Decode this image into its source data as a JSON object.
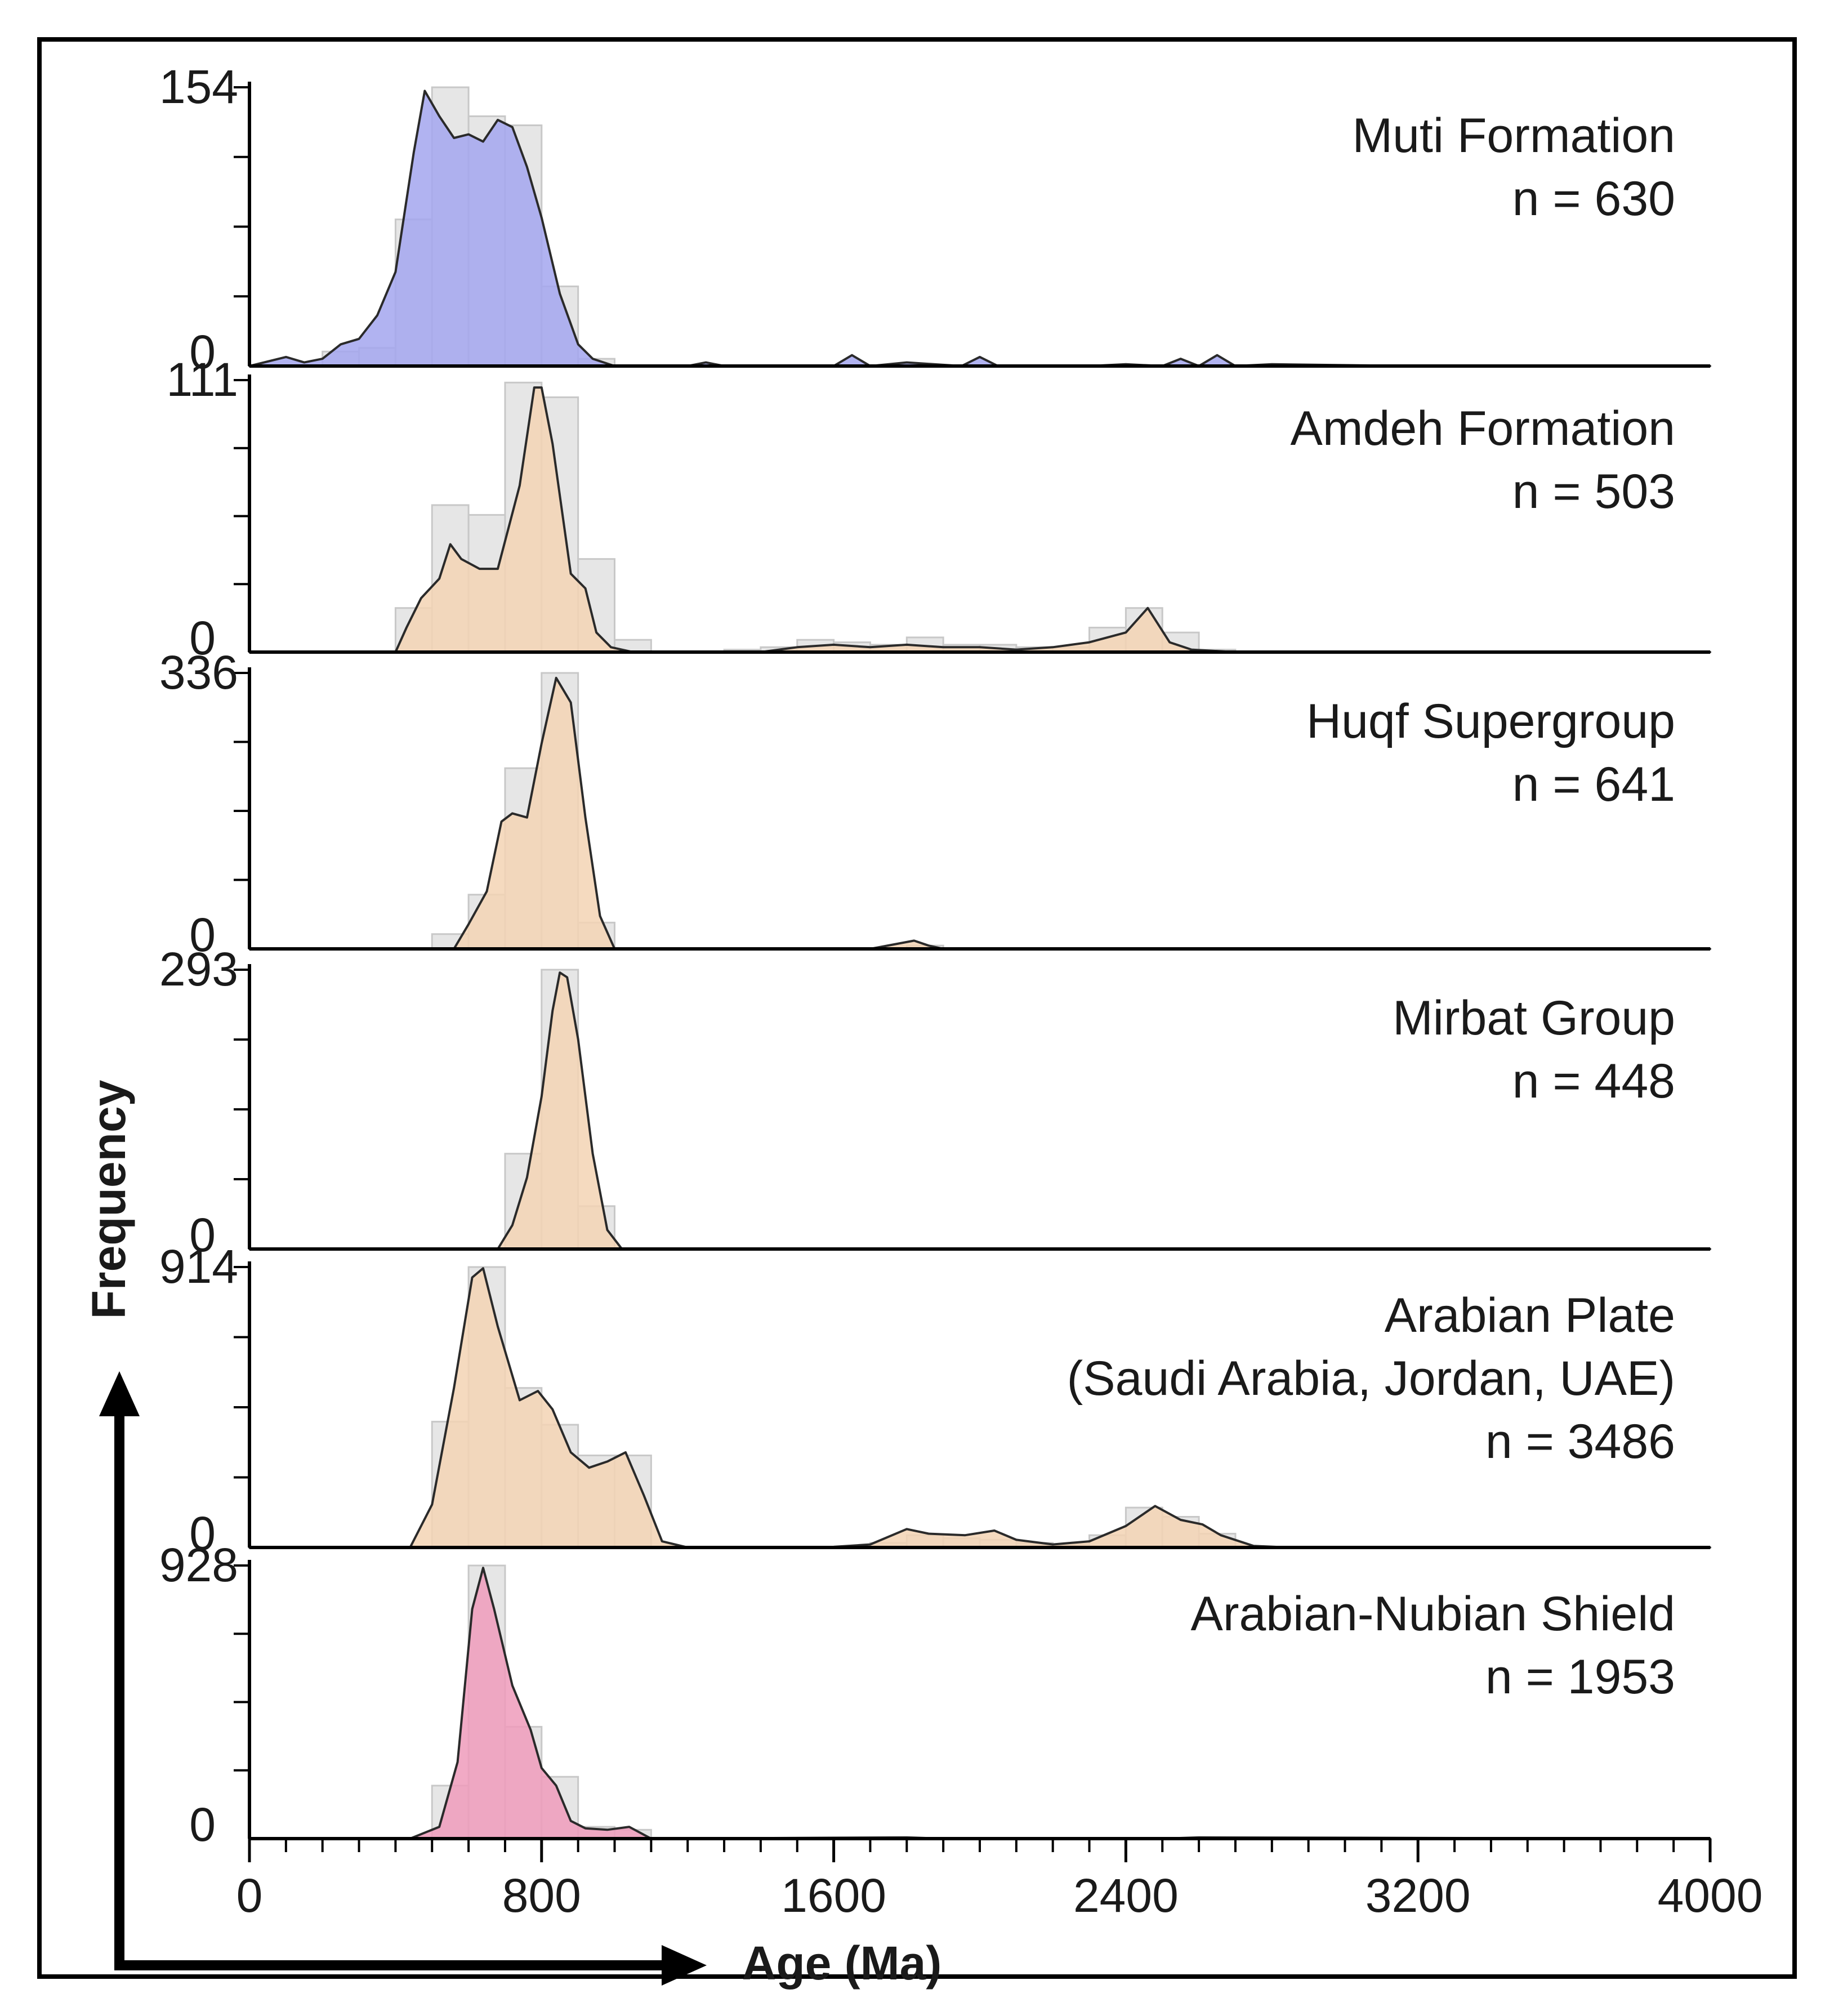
{
  "chart_data": {
    "type": "area",
    "title": "",
    "xlabel": "Age (Ma)",
    "ylabel": "Frequency",
    "xlim": [
      0,
      4000
    ],
    "xticks": [
      0,
      800,
      1600,
      2400,
      3200,
      4000
    ],
    "xtick_labels": [
      "0",
      "800",
      "1600",
      "2400",
      "3200",
      "4000"
    ],
    "x_minor_step": 100,
    "bin_width": 100,
    "panels": [
      {
        "name": "Muti Formation",
        "label_lines": [
          "Muti Formation",
          "n = 630"
        ],
        "ymax": 154,
        "ymax_label": "154",
        "ymin_label": "0",
        "fill": "#a3a6ee",
        "hist_centers": [
          250,
          350,
          450,
          550,
          650,
          750,
          850,
          950
        ],
        "hist_values": [
          8,
          10,
          81,
          154,
          138,
          133,
          44,
          4
        ],
        "kde_x": [
          0,
          100,
          150,
          200,
          250,
          300,
          350,
          400,
          450,
          480,
          520,
          560,
          600,
          640,
          680,
          720,
          760,
          800,
          850,
          900,
          940,
          1000,
          1200,
          1250,
          1300,
          1600,
          1650,
          1700,
          1800,
          1950,
          2000,
          2050,
          2300,
          2400,
          2500,
          2550,
          2600,
          2650,
          2700,
          2800,
          3200,
          4000
        ],
        "kde_y": [
          0,
          5,
          2,
          4,
          12,
          15,
          28,
          52,
          118,
          152,
          138,
          126,
          128,
          124,
          136,
          132,
          110,
          82,
          40,
          12,
          4,
          0,
          0,
          2,
          0,
          0,
          6,
          0,
          2,
          0,
          5,
          0,
          0,
          1,
          0,
          4,
          0,
          6,
          0,
          1,
          0,
          0
        ]
      },
      {
        "name": "Amdeh Formation",
        "label_lines": [
          "Amdeh Formation",
          "n = 503"
        ],
        "ymax": 111,
        "ymax_label": "111",
        "ymin_label": "0",
        "fill": "#f3d4b4",
        "hist_centers": [
          450,
          550,
          650,
          750,
          850,
          950,
          1050,
          1350,
          1450,
          1550,
          1650,
          1750,
          1850,
          1950,
          2050,
          2150,
          2250,
          2350,
          2450,
          2550,
          2650
        ],
        "hist_values": [
          18,
          60,
          56,
          110,
          104,
          38,
          5,
          1,
          2,
          5,
          4,
          3,
          6,
          3,
          3,
          2,
          2,
          10,
          18,
          8,
          1
        ],
        "kde_x": [
          0,
          400,
          430,
          470,
          520,
          550,
          580,
          630,
          680,
          740,
          780,
          800,
          830,
          880,
          920,
          950,
          990,
          1050,
          1400,
          1500,
          1600,
          1700,
          1800,
          1900,
          2000,
          2100,
          2200,
          2300,
          2400,
          2460,
          2520,
          2580,
          2700,
          4000
        ],
        "kde_y": [
          0,
          0,
          10,
          22,
          30,
          44,
          38,
          34,
          34,
          68,
          108,
          108,
          85,
          32,
          26,
          8,
          2,
          0,
          0,
          2,
          3,
          2,
          3,
          2,
          2,
          1,
          2,
          4,
          8,
          18,
          4,
          1,
          0,
          0
        ]
      },
      {
        "name": "Huqf Supergroup",
        "label_lines": [
          "Huqf Supergroup",
          "n = 641"
        ],
        "ymax": 336,
        "ymax_label": "336",
        "ymin_label": "0",
        "fill": "#f3d4b4",
        "hist_centers": [
          550,
          650,
          750,
          850,
          950,
          1850
        ],
        "hist_values": [
          18,
          66,
          220,
          336,
          32,
          4
        ],
        "kde_x": [
          0,
          560,
          600,
          650,
          690,
          720,
          760,
          800,
          840,
          880,
          920,
          960,
          1000,
          1700,
          1820,
          1860,
          1900,
          4000
        ],
        "kde_y": [
          0,
          0,
          30,
          70,
          155,
          165,
          160,
          250,
          330,
          300,
          160,
          40,
          0,
          0,
          10,
          4,
          0,
          0
        ]
      },
      {
        "name": "Mirbat Group",
        "label_lines": [
          "Mirbat Group",
          "n = 448"
        ],
        "ymax": 293,
        "ymax_label": "293",
        "ymin_label": "0",
        "fill": "#f3d4b4",
        "hist_centers": [
          750,
          850,
          950
        ],
        "hist_values": [
          100,
          293,
          45
        ],
        "kde_x": [
          0,
          680,
          720,
          760,
          800,
          830,
          850,
          870,
          900,
          940,
          980,
          1020,
          4000
        ],
        "kde_y": [
          0,
          0,
          25,
          75,
          160,
          250,
          290,
          285,
          220,
          100,
          20,
          0,
          0
        ]
      },
      {
        "name": "Arabian Plate",
        "label_lines": [
          "Arabian Plate",
          "(Saudi Arabia, Jordan, UAE)",
          "n = 3486"
        ],
        "ymax": 914,
        "ymax_label": "914",
        "ymin_label": "0",
        "fill": "#f3d4b4",
        "hist_centers": [
          550,
          650,
          750,
          850,
          950,
          1050,
          1750,
          1850,
          1950,
          2050,
          2150,
          2250,
          2350,
          2450,
          2550,
          2650
        ],
        "hist_values": [
          410,
          914,
          520,
          400,
          300,
          300,
          15,
          40,
          30,
          25,
          15,
          10,
          40,
          130,
          100,
          45
        ],
        "kde_x": [
          0,
          440,
          500,
          560,
          610,
          640,
          680,
          740,
          790,
          830,
          880,
          930,
          980,
          1030,
          1080,
          1130,
          1200,
          1600,
          1700,
          1800,
          1860,
          1960,
          2040,
          2100,
          2200,
          2300,
          2400,
          2480,
          2550,
          2610,
          2660,
          2750,
          2850,
          4000
        ],
        "kde_y": [
          0,
          0,
          140,
          520,
          880,
          910,
          720,
          480,
          510,
          450,
          310,
          260,
          280,
          310,
          170,
          20,
          0,
          2,
          10,
          60,
          45,
          40,
          55,
          25,
          10,
          20,
          70,
          135,
          90,
          75,
          40,
          5,
          0,
          0
        ]
      },
      {
        "name": "Arabian-Nubian Shield",
        "label_lines": [
          "Arabian-Nubian Shield",
          "n = 1953"
        ],
        "ymax": 928,
        "ymax_label": "928",
        "ymin_label": "0",
        "fill": "#ee9bbb",
        "hist_centers": [
          550,
          650,
          750,
          850,
          950,
          1050
        ],
        "hist_values": [
          180,
          928,
          380,
          210,
          40,
          30
        ],
        "kde_x": [
          0,
          440,
          520,
          570,
          610,
          640,
          670,
          720,
          770,
          800,
          840,
          880,
          920,
          980,
          1040,
          1100,
          1800,
          1900,
          2500,
          2600,
          4000
        ],
        "kde_y": [
          0,
          0,
          40,
          260,
          780,
          920,
          780,
          520,
          370,
          240,
          180,
          60,
          35,
          30,
          40,
          0,
          4,
          0,
          0,
          4,
          0
        ]
      }
    ]
  }
}
